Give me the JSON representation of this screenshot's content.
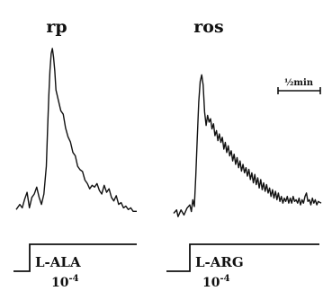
{
  "colors": {
    "ink": "#111111",
    "background": "#ffffff"
  },
  "scale_bar": {
    "label": "½min"
  },
  "chart_data": [
    {
      "type": "line",
      "title": "rp",
      "xlabel": "",
      "ylabel": "",
      "grid": false,
      "stimulus": {
        "label": "L-ALA",
        "concentration": "10-4",
        "concentration_base": "10",
        "concentration_exp": "-4"
      },
      "xlim": [
        0,
        100
      ],
      "ylim": [
        0,
        100
      ],
      "points": [
        [
          0,
          5
        ],
        [
          3,
          8
        ],
        [
          5,
          6
        ],
        [
          7,
          11
        ],
        [
          9,
          15
        ],
        [
          11,
          6
        ],
        [
          13,
          12
        ],
        [
          15,
          14
        ],
        [
          17,
          18
        ],
        [
          19,
          12
        ],
        [
          21,
          8
        ],
        [
          23,
          14
        ],
        [
          25,
          30
        ],
        [
          26,
          50
        ],
        [
          27,
          70
        ],
        [
          28,
          85
        ],
        [
          29,
          95
        ],
        [
          30,
          98
        ],
        [
          31,
          93
        ],
        [
          32,
          85
        ],
        [
          33,
          74
        ],
        [
          35,
          68
        ],
        [
          37,
          62
        ],
        [
          39,
          60
        ],
        [
          41,
          52
        ],
        [
          43,
          47
        ],
        [
          45,
          44
        ],
        [
          47,
          38
        ],
        [
          49,
          36
        ],
        [
          51,
          30
        ],
        [
          53,
          28
        ],
        [
          55,
          27
        ],
        [
          57,
          22
        ],
        [
          59,
          20
        ],
        [
          61,
          17
        ],
        [
          63,
          19
        ],
        [
          65,
          18
        ],
        [
          67,
          20
        ],
        [
          69,
          16
        ],
        [
          71,
          14
        ],
        [
          73,
          19
        ],
        [
          75,
          15
        ],
        [
          77,
          17
        ],
        [
          79,
          12
        ],
        [
          81,
          10
        ],
        [
          83,
          13
        ],
        [
          85,
          8
        ],
        [
          87,
          9
        ],
        [
          89,
          6
        ],
        [
          91,
          7
        ],
        [
          93,
          5
        ],
        [
          95,
          6
        ],
        [
          97,
          4
        ],
        [
          100,
          4
        ]
      ]
    },
    {
      "type": "line",
      "title": "ros",
      "xlabel": "",
      "ylabel": "",
      "grid": false,
      "stimulus": {
        "label": "L-ARG",
        "concentration": "10-4",
        "concentration_base": "10",
        "concentration_exp": "-4"
      },
      "xlim": [
        0,
        100
      ],
      "ylim": [
        0,
        100
      ],
      "points": [
        [
          0,
          4
        ],
        [
          2,
          6
        ],
        [
          3,
          2
        ],
        [
          5,
          6
        ],
        [
          7,
          3
        ],
        [
          9,
          7
        ],
        [
          11,
          9
        ],
        [
          12,
          5
        ],
        [
          13,
          12
        ],
        [
          14,
          8
        ],
        [
          15,
          26
        ],
        [
          16,
          48
        ],
        [
          17,
          70
        ],
        [
          18,
          82
        ],
        [
          19,
          86
        ],
        [
          20,
          80
        ],
        [
          21,
          64
        ],
        [
          22,
          56
        ],
        [
          23,
          62
        ],
        [
          24,
          58
        ],
        [
          25,
          60
        ],
        [
          26,
          54
        ],
        [
          27,
          57
        ],
        [
          28,
          50
        ],
        [
          29,
          53
        ],
        [
          30,
          47
        ],
        [
          31,
          51
        ],
        [
          32,
          46
        ],
        [
          33,
          49
        ],
        [
          34,
          42
        ],
        [
          35,
          46
        ],
        [
          36,
          40
        ],
        [
          37,
          44
        ],
        [
          38,
          38
        ],
        [
          39,
          41
        ],
        [
          40,
          35
        ],
        [
          41,
          39
        ],
        [
          42,
          33
        ],
        [
          43,
          37
        ],
        [
          44,
          31
        ],
        [
          45,
          35
        ],
        [
          46,
          29
        ],
        [
          47,
          33
        ],
        [
          48,
          28
        ],
        [
          49,
          31
        ],
        [
          50,
          26
        ],
        [
          51,
          30
        ],
        [
          52,
          24
        ],
        [
          53,
          28
        ],
        [
          54,
          22
        ],
        [
          55,
          27
        ],
        [
          56,
          21
        ],
        [
          57,
          25
        ],
        [
          58,
          19
        ],
        [
          59,
          24
        ],
        [
          60,
          18
        ],
        [
          61,
          22
        ],
        [
          62,
          17
        ],
        [
          63,
          21
        ],
        [
          64,
          16
        ],
        [
          65,
          19
        ],
        [
          66,
          14
        ],
        [
          67,
          18
        ],
        [
          68,
          13
        ],
        [
          69,
          17
        ],
        [
          70,
          12
        ],
        [
          71,
          16
        ],
        [
          72,
          11
        ],
        [
          73,
          14
        ],
        [
          74,
          10
        ],
        [
          75,
          13
        ],
        [
          76,
          11
        ],
        [
          77,
          14
        ],
        [
          78,
          10
        ],
        [
          79,
          13
        ],
        [
          80,
          10
        ],
        [
          81,
          14
        ],
        [
          82,
          11
        ],
        [
          83,
          12
        ],
        [
          84,
          10
        ],
        [
          85,
          13
        ],
        [
          86,
          9
        ],
        [
          87,
          12
        ],
        [
          88,
          10
        ],
        [
          89,
          14
        ],
        [
          90,
          16
        ],
        [
          91,
          11
        ],
        [
          92,
          12
        ],
        [
          93,
          9
        ],
        [
          94,
          13
        ],
        [
          95,
          10
        ],
        [
          96,
          12
        ],
        [
          97,
          9
        ],
        [
          98,
          11
        ],
        [
          100,
          10
        ]
      ]
    }
  ]
}
